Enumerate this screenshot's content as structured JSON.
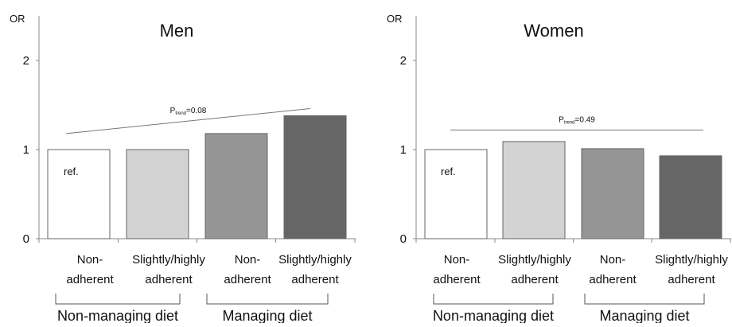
{
  "chart_data": [
    {
      "type": "bar",
      "title": "Men",
      "ylabel": "OR",
      "xlabel": "",
      "ylim": [
        0,
        2.2
      ],
      "yticks": [
        0,
        1,
        2
      ],
      "grid": false,
      "categories": [
        [
          "Non-",
          "adherent"
        ],
        [
          "Slightly/highly",
          "adherent"
        ],
        [
          "Non-",
          "adherent"
        ],
        [
          "Slightly/highly",
          "adherent"
        ]
      ],
      "values": [
        1.0,
        1.0,
        1.18,
        1.38
      ],
      "bar_colors": [
        "#ffffff",
        "#d3d3d3",
        "#959595",
        "#666666"
      ],
      "bar_labels": [
        "ref.",
        "",
        "",
        ""
      ],
      "groups": [
        {
          "label": "Non-managing diet",
          "bars": [
            0,
            1
          ]
        },
        {
          "label": "Managing diet",
          "bars": [
            2,
            3
          ]
        }
      ],
      "trend": {
        "p_main": "P",
        "p_sub": "trend",
        "p_value": "=0.08",
        "from_y": 1.18,
        "to_y": 1.46
      }
    },
    {
      "type": "bar",
      "title": "Women",
      "ylabel": "OR",
      "xlabel": "",
      "ylim": [
        0,
        2.2
      ],
      "yticks": [
        0,
        1,
        2
      ],
      "grid": false,
      "categories": [
        [
          "Non-",
          "adherent"
        ],
        [
          "Slightly/highly",
          "adherent"
        ],
        [
          "Non-",
          "adherent"
        ],
        [
          "Slightly/highly",
          "adherent"
        ]
      ],
      "values": [
        1.0,
        1.09,
        1.01,
        0.93
      ],
      "bar_colors": [
        "#ffffff",
        "#d3d3d3",
        "#959595",
        "#666666"
      ],
      "bar_labels": [
        "ref.",
        "",
        "",
        ""
      ],
      "groups": [
        {
          "label": "Non-managing diet",
          "bars": [
            0,
            1
          ]
        },
        {
          "label": "Managing diet",
          "bars": [
            2,
            3
          ]
        }
      ],
      "trend": {
        "p_main": "P",
        "p_sub": "trend",
        "p_value": "=0.49",
        "from_y": 1.22,
        "to_y": 1.22
      }
    }
  ]
}
